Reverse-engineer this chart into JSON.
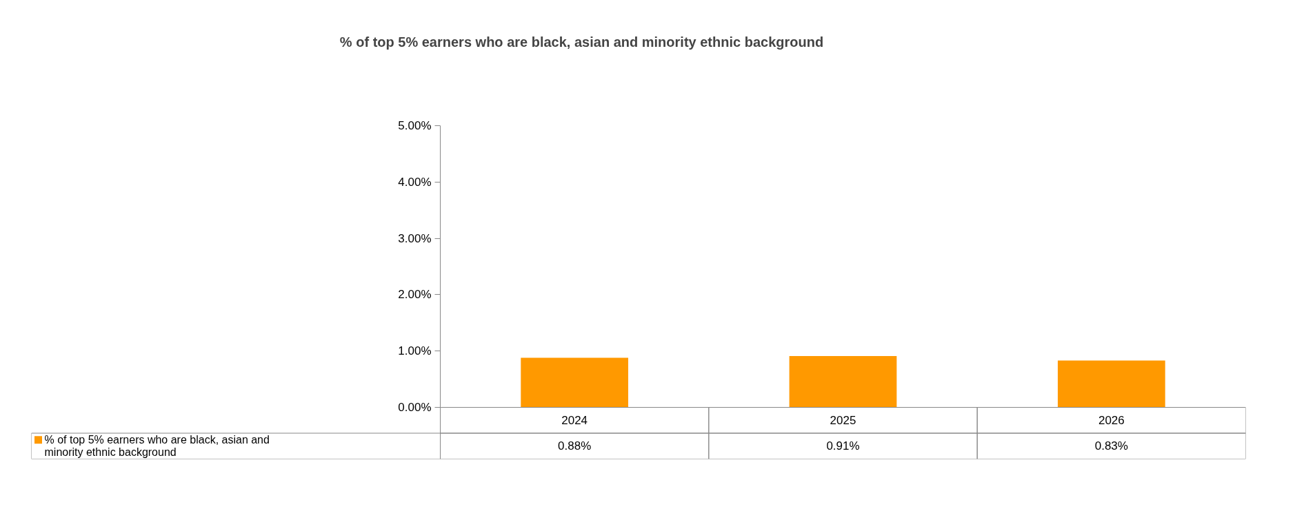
{
  "chart_data": {
    "type": "bar",
    "title": "% of top 5% earners who are black, asian and minority ethnic background",
    "categories": [
      "2024",
      "2025",
      "2026"
    ],
    "series": [
      {
        "name": "% of top 5% earners who are black, asian and minority ethnic background",
        "color": "#ff9900",
        "values": [
          0.88,
          0.91,
          0.83
        ],
        "value_labels": [
          "0.88%",
          "0.91%",
          "0.83%"
        ]
      }
    ],
    "ylim": [
      0,
      5
    ],
    "yticks": [
      {
        "value": 0,
        "label": "0.00%"
      },
      {
        "value": 1,
        "label": "1.00%"
      },
      {
        "value": 2,
        "label": "2.00%"
      },
      {
        "value": 3,
        "label": "3.00%"
      },
      {
        "value": 4,
        "label": "4.00%"
      },
      {
        "value": 5,
        "label": "5.00%"
      }
    ],
    "grid": false,
    "legend": "bottom"
  }
}
